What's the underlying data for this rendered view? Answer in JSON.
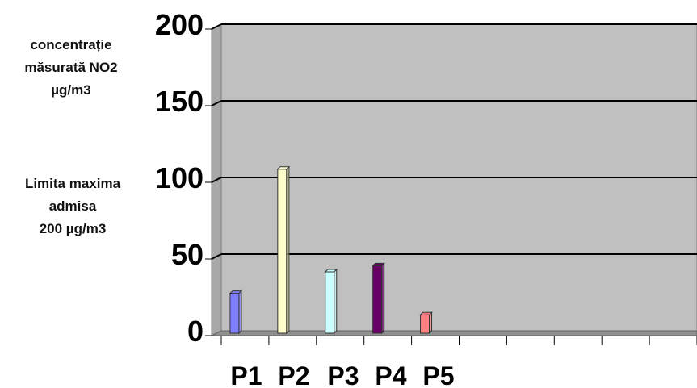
{
  "chart_data": {
    "type": "bar",
    "categories": [
      "P1",
      "P2",
      "P3",
      "P4",
      "P5"
    ],
    "values": [
      26,
      107,
      40,
      44,
      12
    ],
    "bar_colors": [
      "#7f7fff",
      "#ffffcc",
      "#ccffff",
      "#660066",
      "#ff8080"
    ],
    "ylim": [
      0,
      200
    ],
    "yticks": [
      0,
      50,
      100,
      150,
      200
    ],
    "slot_count": 10,
    "grid": true,
    "plot_background": "#c0c0c0",
    "notes": {
      "measured": [
        "concentrație",
        "măsurată  NO2",
        "µg/m3"
      ],
      "limit": [
        "Limita maxima",
        "admisa",
        "200 µg/m3"
      ]
    }
  }
}
